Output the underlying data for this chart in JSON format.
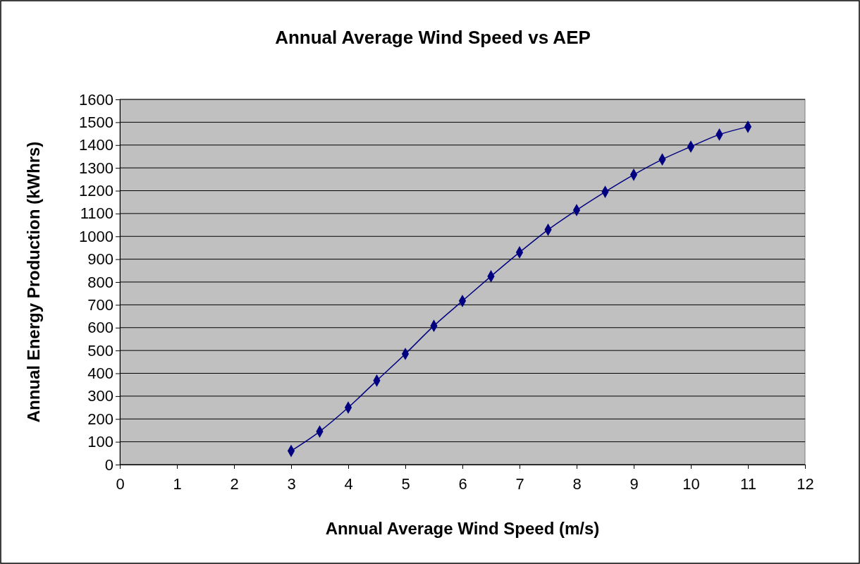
{
  "chart_data": {
    "type": "line",
    "title": "Annual Average Wind Speed vs AEP",
    "xlabel": "Annual Average Wind Speed (m/s)",
    "ylabel": "Annual Energy Production (kWhrs)",
    "x": [
      3,
      3.5,
      4,
      4.5,
      5,
      5.5,
      6,
      6.5,
      7,
      7.5,
      8,
      8.5,
      9,
      9.5,
      10,
      10.5,
      11
    ],
    "series": [
      {
        "color": "#000080",
        "values": [
          60,
          145,
          250,
          368,
          485,
          608,
          717,
          825,
          930,
          1029,
          1115,
          1195,
          1270,
          1337,
          1393,
          1446,
          1480
        ]
      }
    ],
    "xlim": [
      0,
      12
    ],
    "xticks": [
      0,
      1,
      2,
      3,
      4,
      5,
      6,
      7,
      8,
      9,
      10,
      11,
      12
    ],
    "ylim": [
      0,
      1600
    ],
    "yticks": [
      0,
      100,
      200,
      300,
      400,
      500,
      600,
      700,
      800,
      900,
      1000,
      1100,
      1200,
      1300,
      1400,
      1500,
      1600
    ],
    "grid": "y",
    "marker": "diamond",
    "line_style": "solid"
  }
}
